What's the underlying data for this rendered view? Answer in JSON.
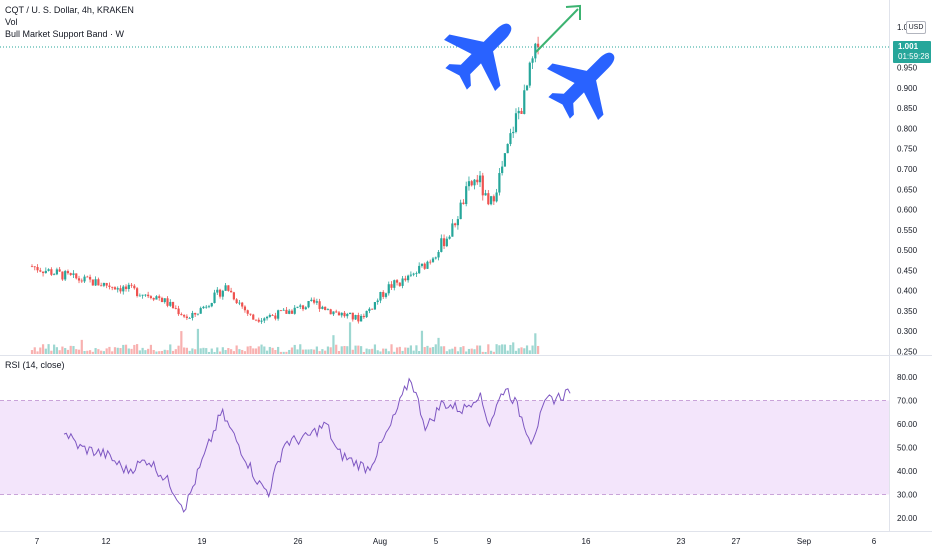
{
  "legend": {
    "title": "CQT / U. S. Dollar, 4h, KRAKEN",
    "vol": "Vol",
    "indicator": "Bull Market Support Band · W"
  },
  "rsi_legend": "RSI (14, close)",
  "currency_button": "USD",
  "last_price": {
    "value": "1.001",
    "countdown": "01:59:28"
  },
  "colors": {
    "up": "#26a69a",
    "down": "#ef5350",
    "rsi_line": "#7e57c2",
    "rsi_band": "#f3e5fb",
    "annotation_arrow": "#3cb371",
    "airplane": "#2962ff",
    "last_price_line": "#26a69a"
  },
  "icons": [
    "airplane-icon",
    "airplane-icon",
    "arrow-up-right-icon"
  ],
  "chart_data": [
    {
      "type": "candlestick",
      "title": "CQT / U. S. Dollar, 4h, KRAKEN",
      "ylabel": "USD",
      "ylim": [
        0.25,
        1.1
      ],
      "y_ticks": [
        "1.050",
        "1.001",
        "0.950",
        "0.900",
        "0.850",
        "0.800",
        "0.750",
        "0.700",
        "0.650",
        "0.600",
        "0.550",
        "0.500",
        "0.450",
        "0.400",
        "0.350",
        "0.300",
        "0.250"
      ],
      "x_ticks": [
        "7",
        "12",
        "19",
        "26",
        "Aug",
        "5",
        "9",
        "16",
        "23",
        "27",
        "Sep",
        "6"
      ],
      "close_path": [
        [
          0.0,
          0.46
        ],
        [
          4.0,
          0.43
        ],
        [
          8.0,
          0.41
        ],
        [
          12.0,
          0.385
        ],
        [
          15.0,
          0.33
        ],
        [
          18.5,
          0.41
        ],
        [
          21.0,
          0.33
        ],
        [
          24.0,
          0.345
        ],
        [
          27.0,
          0.37
        ],
        [
          28.5,
          0.35
        ],
        [
          31.0,
          0.33
        ],
        [
          32.0,
          0.35
        ],
        [
          34.0,
          0.41
        ],
        [
          36.0,
          0.43
        ],
        [
          38.0,
          0.48
        ],
        [
          40.0,
          0.55
        ],
        [
          41.5,
          0.65
        ],
        [
          42.5,
          0.68
        ],
        [
          43.5,
          0.6
        ],
        [
          45.0,
          0.72
        ],
        [
          46.0,
          0.82
        ],
        [
          47.0,
          0.88
        ],
        [
          47.5,
          0.95
        ],
        [
          48.2,
          1.001
        ]
      ],
      "last_price": 1.001,
      "volume_series": "volume"
    },
    {
      "type": "line",
      "title": "RSI (14, close)",
      "ylim": [
        20,
        80
      ],
      "y_ticks": [
        80.0,
        70.0,
        60.0,
        50.0,
        40.0,
        30.0,
        20.0
      ],
      "band": [
        30,
        70
      ],
      "anchors": [
        [
          0.0,
          57
        ],
        [
          1.5,
          50
        ],
        [
          4.0,
          47
        ],
        [
          6.0,
          40
        ],
        [
          8.0,
          45
        ],
        [
          10.0,
          35
        ],
        [
          11.5,
          24
        ],
        [
          13.0,
          42
        ],
        [
          15.0,
          65
        ],
        [
          17.0,
          48
        ],
        [
          18.5,
          35
        ],
        [
          19.5,
          31
        ],
        [
          21.0,
          52
        ],
        [
          23.0,
          54
        ],
        [
          25.0,
          60
        ],
        [
          26.0,
          48
        ],
        [
          27.5,
          44
        ],
        [
          29.0,
          41
        ],
        [
          31.0,
          58
        ],
        [
          33.0,
          80
        ],
        [
          34.5,
          58
        ],
        [
          36.0,
          69
        ],
        [
          38.0,
          66
        ],
        [
          39.5,
          73
        ],
        [
          40.5,
          60
        ],
        [
          42.0,
          76
        ],
        [
          43.0,
          69
        ],
        [
          44.5,
          53
        ],
        [
          46.0,
          70
        ],
        [
          47.5,
          72
        ],
        [
          48.2,
          75
        ]
      ]
    }
  ]
}
